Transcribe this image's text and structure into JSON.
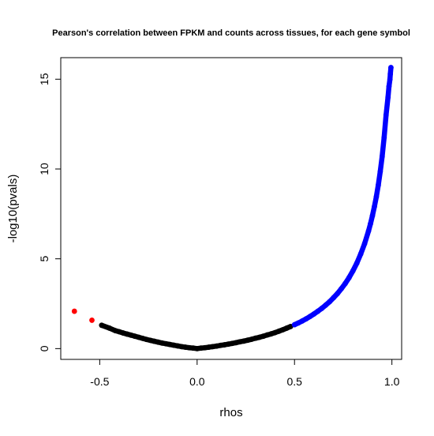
{
  "chart_data": {
    "type": "scatter",
    "title": "Pearson's correlation between FPKM and counts across tissues, for each gene symbol",
    "xlabel": "rhos",
    "ylabel": "-log10(pvals)",
    "xlim": [
      -0.7,
      1.05
    ],
    "ylim": [
      -0.6,
      16.2
    ],
    "x_ticks": [
      -0.5,
      0.0,
      0.5,
      1.0
    ],
    "x_tick_labels": [
      "-0.5",
      "0.0",
      "0.5",
      "1.0"
    ],
    "y_ticks": [
      0,
      5,
      10,
      15
    ],
    "y_tick_labels": [
      "0",
      "5",
      "10",
      "15"
    ],
    "grid": false,
    "colors": {
      "red": "#ff0000",
      "black": "#000000",
      "blue": "#0000ff"
    },
    "series": [
      {
        "color": "red",
        "points": [
          [
            -0.63,
            2.08
          ],
          [
            -0.54,
            1.58
          ]
        ]
      },
      {
        "color": "black",
        "points": [
          [
            -0.49,
            1.3
          ],
          [
            -0.45,
            1.14
          ],
          [
            -0.42,
            1.0
          ],
          [
            -0.4,
            0.94
          ],
          [
            -0.38,
            0.87
          ],
          [
            -0.36,
            0.81
          ],
          [
            -0.34,
            0.75
          ],
          [
            -0.32,
            0.69
          ],
          [
            -0.3,
            0.63
          ],
          [
            -0.28,
            0.57
          ],
          [
            -0.26,
            0.51
          ],
          [
            -0.24,
            0.46
          ],
          [
            -0.22,
            0.41
          ],
          [
            -0.2,
            0.36
          ],
          [
            -0.18,
            0.31
          ],
          [
            -0.16,
            0.27
          ],
          [
            -0.14,
            0.23
          ],
          [
            -0.12,
            0.19
          ],
          [
            -0.1,
            0.15
          ],
          [
            -0.08,
            0.11
          ],
          [
            -0.06,
            0.08
          ],
          [
            -0.04,
            0.05
          ],
          [
            -0.02,
            0.03
          ],
          [
            0.0,
            0.0
          ],
          [
            0.02,
            0.03
          ],
          [
            0.04,
            0.05
          ],
          [
            0.06,
            0.08
          ],
          [
            0.08,
            0.11
          ],
          [
            0.1,
            0.14
          ],
          [
            0.12,
            0.18
          ],
          [
            0.14,
            0.21
          ],
          [
            0.16,
            0.25
          ],
          [
            0.18,
            0.29
          ],
          [
            0.2,
            0.33
          ],
          [
            0.22,
            0.38
          ],
          [
            0.24,
            0.42
          ],
          [
            0.26,
            0.47
          ],
          [
            0.28,
            0.52
          ],
          [
            0.3,
            0.58
          ],
          [
            0.32,
            0.63
          ],
          [
            0.34,
            0.69
          ],
          [
            0.36,
            0.76
          ],
          [
            0.38,
            0.82
          ],
          [
            0.4,
            0.89
          ],
          [
            0.42,
            0.97
          ],
          [
            0.44,
            1.05
          ],
          [
            0.46,
            1.14
          ],
          [
            0.48,
            1.23
          ]
        ]
      },
      {
        "color": "blue",
        "points": [
          [
            0.5,
            1.33
          ],
          [
            0.52,
            1.43
          ],
          [
            0.54,
            1.54
          ],
          [
            0.56,
            1.66
          ],
          [
            0.58,
            1.79
          ],
          [
            0.6,
            1.93
          ],
          [
            0.62,
            2.08
          ],
          [
            0.64,
            2.24
          ],
          [
            0.66,
            2.42
          ],
          [
            0.68,
            2.61
          ],
          [
            0.7,
            2.83
          ],
          [
            0.72,
            3.06
          ],
          [
            0.74,
            3.33
          ],
          [
            0.76,
            3.62
          ],
          [
            0.78,
            3.95
          ],
          [
            0.8,
            4.33
          ],
          [
            0.82,
            4.76
          ],
          [
            0.84,
            5.27
          ],
          [
            0.86,
            5.85
          ],
          [
            0.88,
            6.55
          ],
          [
            0.89,
            6.95
          ],
          [
            0.9,
            7.4
          ],
          [
            0.91,
            7.9
          ],
          [
            0.92,
            8.45
          ],
          [
            0.93,
            9.1
          ],
          [
            0.94,
            9.85
          ],
          [
            0.95,
            10.7
          ],
          [
            0.96,
            11.75
          ],
          [
            0.97,
            13.0
          ],
          [
            0.98,
            14.0
          ],
          [
            0.985,
            14.6
          ],
          [
            0.99,
            15.0
          ],
          [
            0.992,
            15.3
          ],
          [
            0.995,
            15.65
          ]
        ]
      }
    ]
  }
}
